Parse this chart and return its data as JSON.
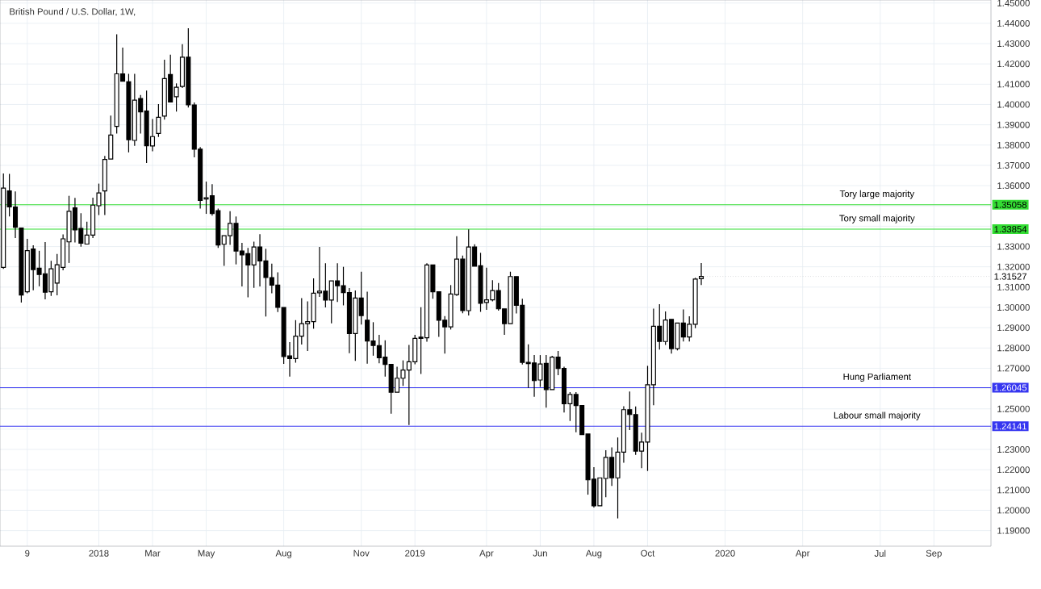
{
  "chart_data": {
    "type": "candlestick",
    "title": "British Pound / U.S. Dollar, 1W,",
    "x": [
      "2017-09-11",
      "2017-09-18",
      "2017-09-25",
      "2017-10-02",
      "2017-10-09",
      "2017-10-16",
      "2017-10-23",
      "2017-10-30",
      "2017-11-06",
      "2017-11-13",
      "2017-11-20",
      "2017-11-27",
      "2017-12-04",
      "2017-12-11",
      "2017-12-18",
      "2017-12-25",
      "2018-01-01",
      "2018-01-08",
      "2018-01-15",
      "2018-01-22",
      "2018-01-29",
      "2018-02-05",
      "2018-02-12",
      "2018-02-19",
      "2018-02-26",
      "2018-03-05",
      "2018-03-12",
      "2018-03-19",
      "2018-03-26",
      "2018-04-02",
      "2018-04-09",
      "2018-04-16",
      "2018-04-23",
      "2018-04-30",
      "2018-05-07",
      "2018-05-14",
      "2018-05-21",
      "2018-05-28",
      "2018-06-04",
      "2018-06-11",
      "2018-06-18",
      "2018-06-25",
      "2018-07-02",
      "2018-07-09",
      "2018-07-16",
      "2018-07-23",
      "2018-07-30",
      "2018-08-06",
      "2018-08-13",
      "2018-08-20",
      "2018-08-27",
      "2018-09-03",
      "2018-09-10",
      "2018-09-17",
      "2018-09-24",
      "2018-10-01",
      "2018-10-08",
      "2018-10-15",
      "2018-10-22",
      "2018-10-29",
      "2018-11-05",
      "2018-11-12",
      "2018-11-19",
      "2018-11-26",
      "2018-12-03",
      "2018-12-10",
      "2018-12-17",
      "2018-12-24",
      "2018-12-31",
      "2019-01-07",
      "2019-01-14",
      "2019-01-21",
      "2019-01-28",
      "2019-02-04",
      "2019-02-11",
      "2019-02-18",
      "2019-02-25",
      "2019-03-04",
      "2019-03-11",
      "2019-03-18",
      "2019-03-25",
      "2019-04-01",
      "2019-04-08",
      "2019-04-15",
      "2019-04-22",
      "2019-04-29",
      "2019-05-06",
      "2019-05-13",
      "2019-05-20",
      "2019-05-27",
      "2019-06-03",
      "2019-06-10",
      "2019-06-17",
      "2019-06-24",
      "2019-07-01",
      "2019-07-08",
      "2019-07-15",
      "2019-07-22",
      "2019-07-29",
      "2019-08-05",
      "2019-08-12",
      "2019-08-19",
      "2019-08-26",
      "2019-09-02",
      "2019-09-09",
      "2019-09-16",
      "2019-09-23",
      "2019-09-30",
      "2019-10-07",
      "2019-10-14",
      "2019-10-21",
      "2019-10-28",
      "2019-11-04",
      "2019-11-11",
      "2019-11-18",
      "2019-11-25",
      "2019-12-02",
      "2019-12-09"
    ],
    "ohlc": [
      [
        1.3197,
        1.366,
        1.319,
        1.3588
      ],
      [
        1.3574,
        1.3658,
        1.3448,
        1.3495
      ],
      [
        1.3495,
        1.3572,
        1.3342,
        1.3395
      ],
      [
        1.3391,
        1.3391,
        1.3024,
        1.3061
      ],
      [
        1.3077,
        1.3338,
        1.307,
        1.328
      ],
      [
        1.3288,
        1.3306,
        1.3084,
        1.3186
      ],
      [
        1.3193,
        1.3279,
        1.3104,
        1.3162
      ],
      [
        1.3166,
        1.3322,
        1.304,
        1.3075
      ],
      [
        1.3077,
        1.323,
        1.3057,
        1.319
      ],
      [
        1.312,
        1.3263,
        1.306,
        1.321
      ],
      [
        1.3197,
        1.336,
        1.3183,
        1.3338
      ],
      [
        1.3323,
        1.355,
        1.3219,
        1.3474
      ],
      [
        1.3491,
        1.354,
        1.332,
        1.3382
      ],
      [
        1.3389,
        1.3464,
        1.3299,
        1.3316
      ],
      [
        1.3312,
        1.3422,
        1.3312,
        1.3356
      ],
      [
        1.3356,
        1.3541,
        1.3342,
        1.3504
      ],
      [
        1.3501,
        1.361,
        1.3455,
        1.3564
      ],
      [
        1.3574,
        1.3747,
        1.3455,
        1.3729
      ],
      [
        1.3731,
        1.3945,
        1.3731,
        1.3849
      ],
      [
        1.3892,
        1.4346,
        1.3857,
        1.4151
      ],
      [
        1.4151,
        1.428,
        1.4115,
        1.4115
      ],
      [
        1.4112,
        1.4151,
        1.3764,
        1.3826
      ],
      [
        1.3823,
        1.4151,
        1.3796,
        1.4021
      ],
      [
        1.4029,
        1.4047,
        1.3857,
        1.3964
      ],
      [
        1.3968,
        1.4069,
        1.3712,
        1.3797
      ],
      [
        1.3796,
        1.3928,
        1.3769,
        1.3842
      ],
      [
        1.3857,
        1.4002,
        1.384,
        1.3937
      ],
      [
        1.3943,
        1.4221,
        1.3925,
        1.4128
      ],
      [
        1.4148,
        1.4246,
        1.4012,
        1.4012
      ],
      [
        1.4038,
        1.4104,
        1.3965,
        1.4085
      ],
      [
        1.4089,
        1.4297,
        1.4082,
        1.4233
      ],
      [
        1.4233,
        1.4376,
        1.3985,
        1.3998
      ],
      [
        1.3998,
        1.401,
        1.374,
        1.378
      ],
      [
        1.378,
        1.379,
        1.3487,
        1.3527
      ],
      [
        1.3534,
        1.362,
        1.3461,
        1.354
      ],
      [
        1.355,
        1.3607,
        1.3452,
        1.3463
      ],
      [
        1.3477,
        1.3487,
        1.3293,
        1.3308
      ],
      [
        1.3311,
        1.3353,
        1.3205,
        1.3353
      ],
      [
        1.3353,
        1.3474,
        1.3308,
        1.3414
      ],
      [
        1.3414,
        1.3448,
        1.3212,
        1.3278
      ],
      [
        1.3278,
        1.3318,
        1.3103,
        1.3259
      ],
      [
        1.3265,
        1.3293,
        1.305,
        1.3209
      ],
      [
        1.3209,
        1.3324,
        1.3096,
        1.3298
      ],
      [
        1.3298,
        1.3361,
        1.3103,
        1.3229
      ],
      [
        1.3229,
        1.3289,
        1.2955,
        1.3147
      ],
      [
        1.3147,
        1.3216,
        1.307,
        1.311
      ],
      [
        1.311,
        1.3173,
        1.2977,
        1.3
      ],
      [
        1.3,
        1.3,
        1.2722,
        1.2758
      ],
      [
        1.2761,
        1.2829,
        1.2659,
        1.2748
      ],
      [
        1.2748,
        1.2937,
        1.2728,
        1.2858
      ],
      [
        1.2858,
        1.3046,
        1.2817,
        1.292
      ],
      [
        1.292,
        1.303,
        1.2785,
        1.293
      ],
      [
        1.293,
        1.3143,
        1.2895,
        1.307
      ],
      [
        1.3072,
        1.3298,
        1.3052,
        1.308
      ],
      [
        1.308,
        1.3218,
        1.3,
        1.3036
      ],
      [
        1.3036,
        1.3131,
        1.2921,
        1.3131
      ],
      [
        1.3131,
        1.3218,
        1.3027,
        1.3107
      ],
      [
        1.3107,
        1.32,
        1.301,
        1.3073
      ],
      [
        1.3073,
        1.3095,
        1.2774,
        1.2871
      ],
      [
        1.2871,
        1.3083,
        1.2736,
        1.3046
      ],
      [
        1.3046,
        1.3176,
        1.2915,
        1.296
      ],
      [
        1.2937,
        1.3077,
        1.2723,
        1.2834
      ],
      [
        1.2835,
        1.2927,
        1.2762,
        1.2812
      ],
      [
        1.2812,
        1.2865,
        1.2725,
        1.2752
      ],
      [
        1.2755,
        1.2838,
        1.2659,
        1.2719
      ],
      [
        1.2719,
        1.2719,
        1.2476,
        1.2582
      ],
      [
        1.2582,
        1.2708,
        1.2582,
        1.2651
      ],
      [
        1.2651,
        1.2739,
        1.2613,
        1.2691
      ],
      [
        1.2691,
        1.2815,
        1.242,
        1.2732
      ],
      [
        1.2732,
        1.2865,
        1.272,
        1.2847
      ],
      [
        1.2853,
        1.3001,
        1.2672,
        1.2847
      ],
      [
        1.285,
        1.3218,
        1.2831,
        1.3209
      ],
      [
        1.3209,
        1.3209,
        1.3043,
        1.3077
      ],
      [
        1.3077,
        1.3077,
        1.2855,
        1.2937
      ],
      [
        1.2937,
        1.2957,
        1.2772,
        1.2904
      ],
      [
        1.2904,
        1.311,
        1.2891,
        1.3066
      ],
      [
        1.3063,
        1.3351,
        1.3057,
        1.3238
      ],
      [
        1.3238,
        1.3255,
        1.2971,
        1.2984
      ],
      [
        1.2984,
        1.3385,
        1.296,
        1.3298
      ],
      [
        1.3298,
        1.3311,
        1.3203,
        1.3203
      ],
      [
        1.3205,
        1.3269,
        1.2978,
        1.302
      ],
      [
        1.3024,
        1.3196,
        1.2988,
        1.3037
      ],
      [
        1.3037,
        1.3134,
        1.303,
        1.3083
      ],
      [
        1.3083,
        1.312,
        1.2984,
        1.2993
      ],
      [
        1.2993,
        1.2993,
        1.2865,
        1.292
      ],
      [
        1.292,
        1.3176,
        1.292,
        1.3152
      ],
      [
        1.3152,
        1.3152,
        1.297,
        1.301
      ],
      [
        1.301,
        1.3043,
        1.2719,
        1.2729
      ],
      [
        1.2729,
        1.2818,
        1.2603,
        1.2723
      ],
      [
        1.2726,
        1.2765,
        1.256,
        1.2639
      ],
      [
        1.2642,
        1.2765,
        1.2608,
        1.2721
      ],
      [
        1.2724,
        1.2765,
        1.2506,
        1.2595
      ],
      [
        1.2595,
        1.2761,
        1.2595,
        1.2755
      ],
      [
        1.2755,
        1.2785,
        1.2666,
        1.2699
      ],
      [
        1.2699,
        1.2708,
        1.2482,
        1.2525
      ],
      [
        1.2525,
        1.2582,
        1.244,
        1.2571
      ],
      [
        1.2571,
        1.2582,
        1.2385,
        1.2516
      ],
      [
        1.2516,
        1.2516,
        1.2373,
        1.2373
      ],
      [
        1.2376,
        1.2376,
        1.2077,
        1.215
      ],
      [
        1.2154,
        1.2213,
        1.2014,
        1.2022
      ],
      [
        1.2022,
        1.216,
        1.2022,
        1.216
      ],
      [
        1.2157,
        1.2296,
        1.2064,
        1.2261
      ],
      [
        1.2261,
        1.231,
        1.212,
        1.216
      ],
      [
        1.216,
        1.2359,
        1.196,
        1.2287
      ],
      [
        1.2287,
        1.2513,
        1.2234,
        1.2496
      ],
      [
        1.2496,
        1.2585,
        1.2396,
        1.2472
      ],
      [
        1.2472,
        1.2512,
        1.2273,
        1.2292
      ],
      [
        1.2292,
        1.2383,
        1.2208,
        1.2336
      ],
      [
        1.2336,
        1.2712,
        1.2194,
        1.2619
      ],
      [
        1.2619,
        1.2994,
        1.2518,
        1.2907
      ],
      [
        1.2907,
        1.3016,
        1.2792,
        1.2832
      ],
      [
        1.2832,
        1.298,
        1.2815,
        1.2938
      ],
      [
        1.2941,
        1.2941,
        1.2772,
        1.2797
      ],
      [
        1.2797,
        1.2923,
        1.2788,
        1.2923
      ],
      [
        1.2923,
        1.299,
        1.2832,
        1.2854
      ],
      [
        1.2854,
        1.2956,
        1.2832,
        1.2917
      ],
      [
        1.2917,
        1.3146,
        1.2898,
        1.314
      ],
      [
        1.3142,
        1.3219,
        1.311,
        1.31527
      ]
    ],
    "xlim": [
      "2017-09-07",
      "2020-11-13"
    ],
    "xticks": [
      {
        "value": "2017-10-09",
        "label": "9"
      },
      {
        "value": "2018-01-01",
        "label": "2018"
      },
      {
        "value": "2018-03-05",
        "label": "Mar"
      },
      {
        "value": "2018-05-07",
        "label": "May"
      },
      {
        "value": "2018-08-06",
        "label": "Aug"
      },
      {
        "value": "2018-11-05",
        "label": "Nov"
      },
      {
        "value": "2019-01-07",
        "label": "2019"
      },
      {
        "value": "2019-04-01",
        "label": "Apr"
      },
      {
        "value": "2019-06-03",
        "label": "Jun"
      },
      {
        "value": "2019-08-05",
        "label": "Aug"
      },
      {
        "value": "2019-10-07",
        "label": "Oct"
      },
      {
        "value": "2020-01-06",
        "label": "2020"
      },
      {
        "value": "2020-04-06",
        "label": "Apr"
      },
      {
        "value": "2020-07-06",
        "label": "Jul"
      },
      {
        "value": "2020-09-07",
        "label": "Sep"
      }
    ],
    "ylim": [
      1.1823,
      1.4515
    ],
    "yticks": [
      {
        "value": 1.19,
        "label": "1.19000"
      },
      {
        "value": 1.2,
        "label": "1.20000"
      },
      {
        "value": 1.21,
        "label": "1.21000"
      },
      {
        "value": 1.22,
        "label": "1.22000"
      },
      {
        "value": 1.23,
        "label": "1.23000"
      },
      {
        "value": 1.24,
        "label": null
      },
      {
        "value": 1.25,
        "label": "1.25000"
      },
      {
        "value": 1.26,
        "label": null
      },
      {
        "value": 1.27,
        "label": "1.27000"
      },
      {
        "value": 1.28,
        "label": "1.28000"
      },
      {
        "value": 1.29,
        "label": "1.29000"
      },
      {
        "value": 1.3,
        "label": "1.30000"
      },
      {
        "value": 1.31,
        "label": "1.31000"
      },
      {
        "value": 1.32,
        "label": "1.32000"
      },
      {
        "value": 1.33,
        "label": "1.33000"
      },
      {
        "value": 1.34,
        "label": null
      },
      {
        "value": 1.35,
        "label": null
      },
      {
        "value": 1.36,
        "label": "1.36000"
      },
      {
        "value": 1.37,
        "label": "1.37000"
      },
      {
        "value": 1.38,
        "label": "1.38000"
      },
      {
        "value": 1.39,
        "label": "1.39000"
      },
      {
        "value": 1.4,
        "label": "1.40000"
      },
      {
        "value": 1.41,
        "label": "1.41000"
      },
      {
        "value": 1.42,
        "label": "1.42000"
      },
      {
        "value": 1.43,
        "label": "1.43000"
      },
      {
        "value": 1.44,
        "label": "1.44000"
      },
      {
        "value": 1.45,
        "label": "1.45000"
      }
    ],
    "grid": true,
    "ref_lines": [
      {
        "axis": "y",
        "value": 1.35058,
        "label": "Tory large majority",
        "color": "#33dd33"
      },
      {
        "axis": "y",
        "value": 1.33854,
        "label": "Tory small majority",
        "color": "#33dd33"
      },
      {
        "axis": "y",
        "value": 1.26045,
        "label": "Hung Parliament",
        "color": "#3535f0"
      },
      {
        "axis": "y",
        "value": 1.24141,
        "label": "Labour small majority",
        "color": "#3535f0"
      }
    ],
    "annotations": [
      {
        "text": "1.31527",
        "x": "2019-12-09",
        "y": 1.31527
      },
      "1.35058",
      "1.33854",
      "1.26045",
      "1.24141"
    ]
  }
}
